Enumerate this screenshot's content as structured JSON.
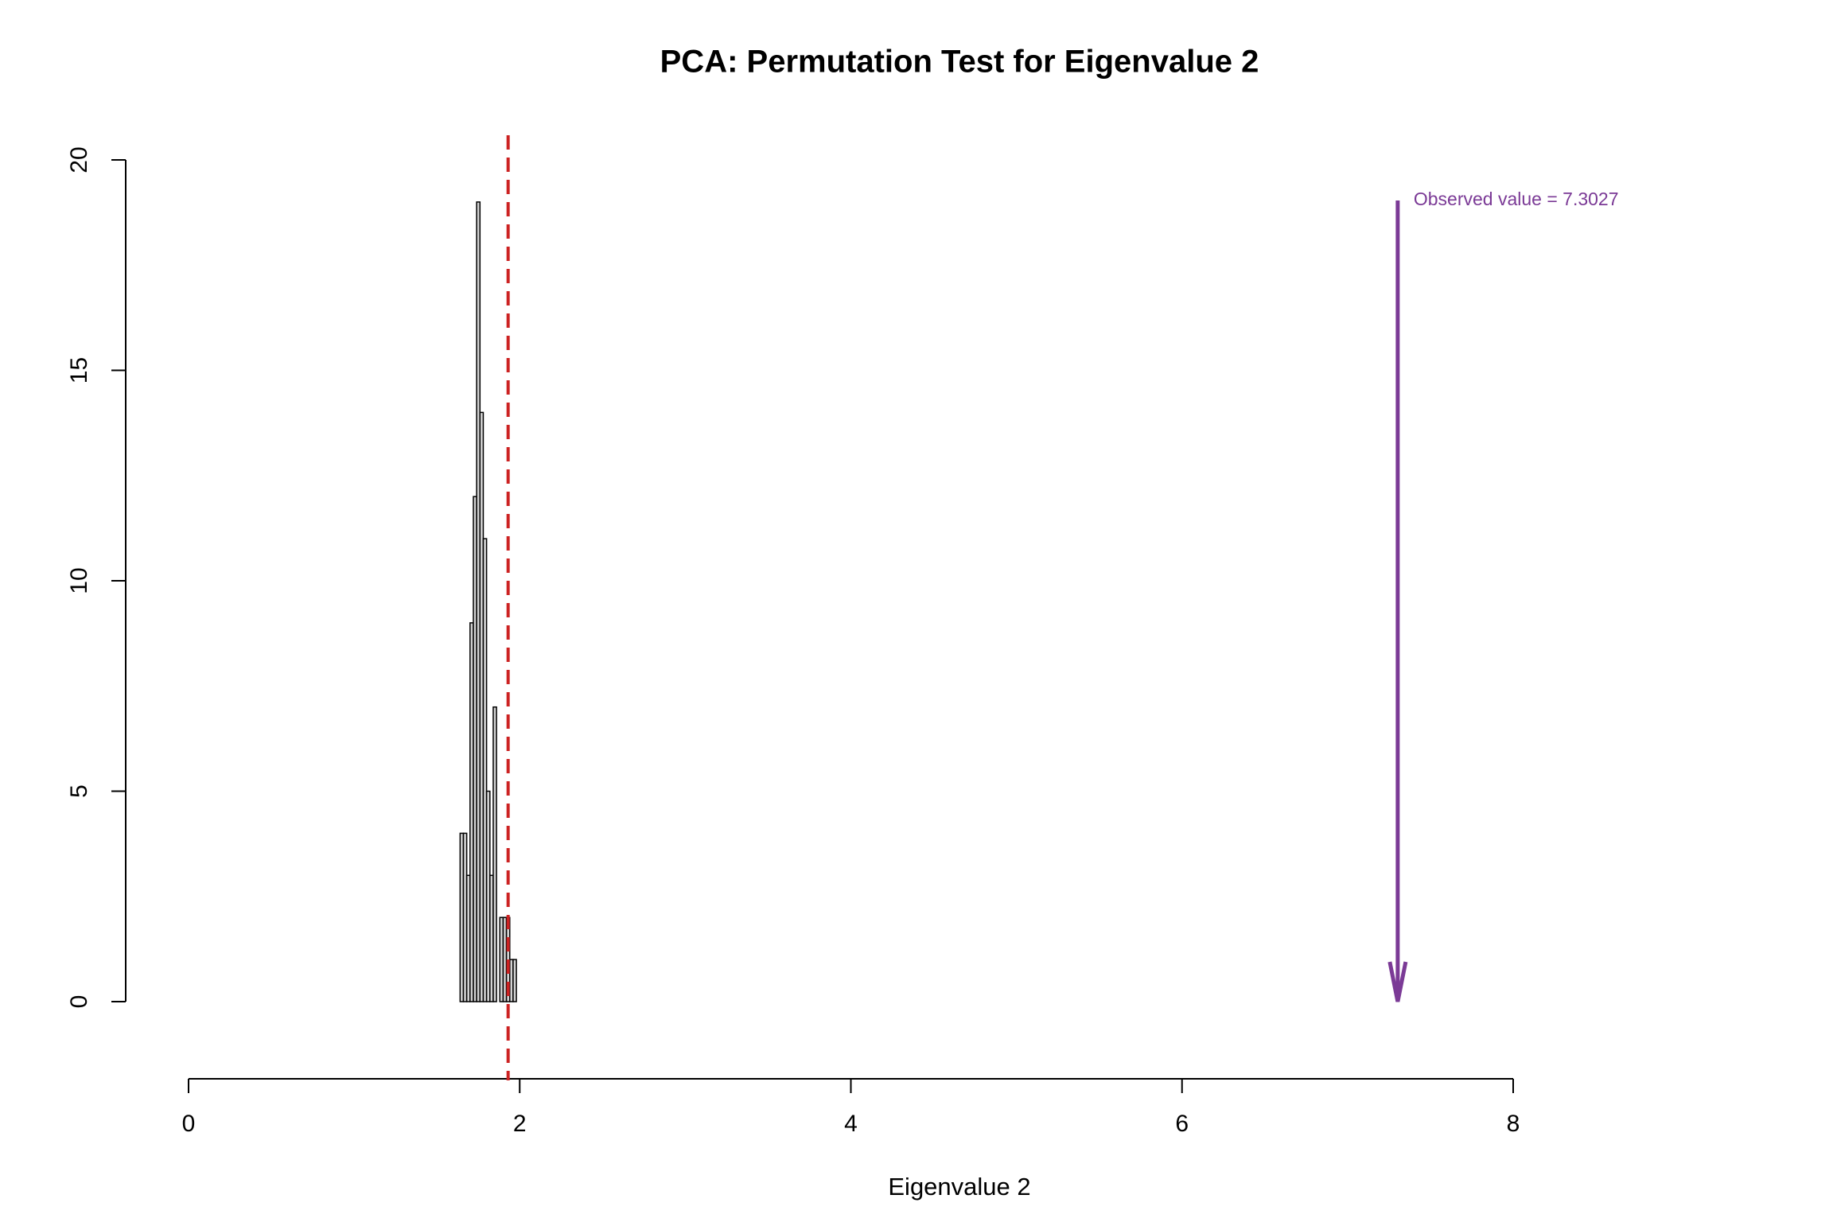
{
  "chart_data": {
    "type": "histogram",
    "title": "PCA: Permutation Test for Eigenvalue 2",
    "x_label": "Eigenvalue 2",
    "bins": [
      1.64,
      1.66,
      1.68,
      1.7,
      1.72,
      1.74,
      1.76,
      1.78,
      1.8,
      1.82,
      1.84,
      1.86,
      1.88,
      1.9,
      1.92,
      1.94,
      1.96,
      1.98
    ],
    "values": [
      4,
      4,
      3,
      9,
      12,
      19,
      14,
      11,
      5,
      3,
      7,
      0,
      2,
      2,
      2,
      1,
      1
    ],
    "color": "#d3d3d3",
    "xlim": [
      0,
      8
    ],
    "xticks": [
      0,
      2,
      4,
      6,
      8
    ],
    "ylim": [
      0,
      20
    ],
    "yticks": [
      0,
      5,
      10,
      15,
      20
    ],
    "critical_value": 1.93,
    "critical_color": "#cc2222",
    "observed_value": 7.3027,
    "observed_color": "#7b3a96",
    "annotation": "Observed value = 7.3027"
  }
}
